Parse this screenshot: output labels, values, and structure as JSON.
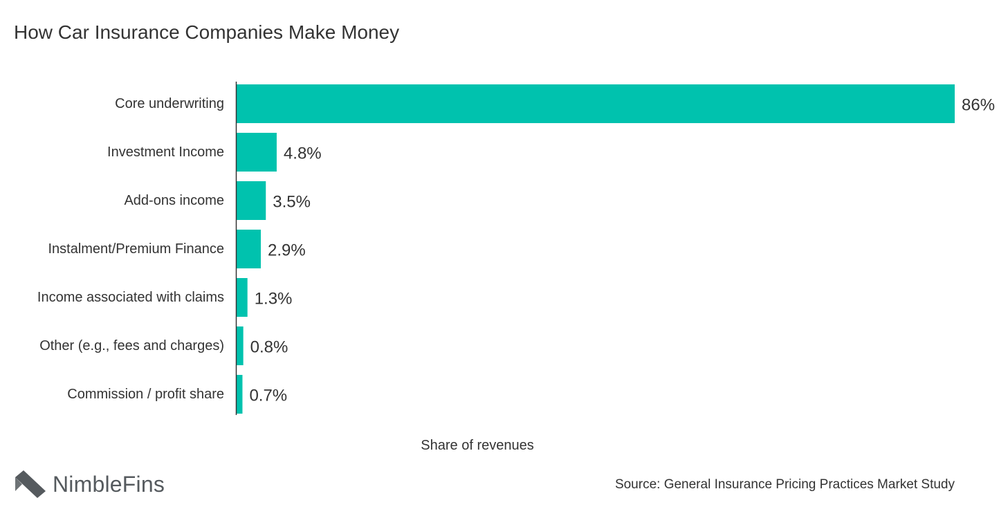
{
  "title": "How Car Insurance Companies Make Money",
  "brand": {
    "name": "NimbleFins",
    "icon": "nimblefins-chevron-icon"
  },
  "source": "Source: General Insurance Pricing Practices Market Study",
  "colors": {
    "bar": "#00c2ae",
    "axis": "#333333",
    "text": "#333333",
    "logo": "#555a5e"
  },
  "chart_data": {
    "type": "bar",
    "orientation": "horizontal",
    "categories": [
      "Core underwriting",
      "Investment Income",
      "Add-ons income",
      "Instalment/Premium Finance",
      "Income associated with claims",
      "Other (e.g., fees and charges)",
      "Commission / profit share"
    ],
    "values": [
      86,
      4.8,
      3.5,
      2.9,
      1.3,
      0.8,
      0.7
    ],
    "data_labels": [
      "86%",
      "4.8%",
      "3.5%",
      "2.9%",
      "1.3%",
      "0.8%",
      "0.7%"
    ],
    "xlabel": "Share of revenues",
    "ylabel": "",
    "xlim": [
      0,
      86
    ],
    "grid": false,
    "legend": "none"
  }
}
